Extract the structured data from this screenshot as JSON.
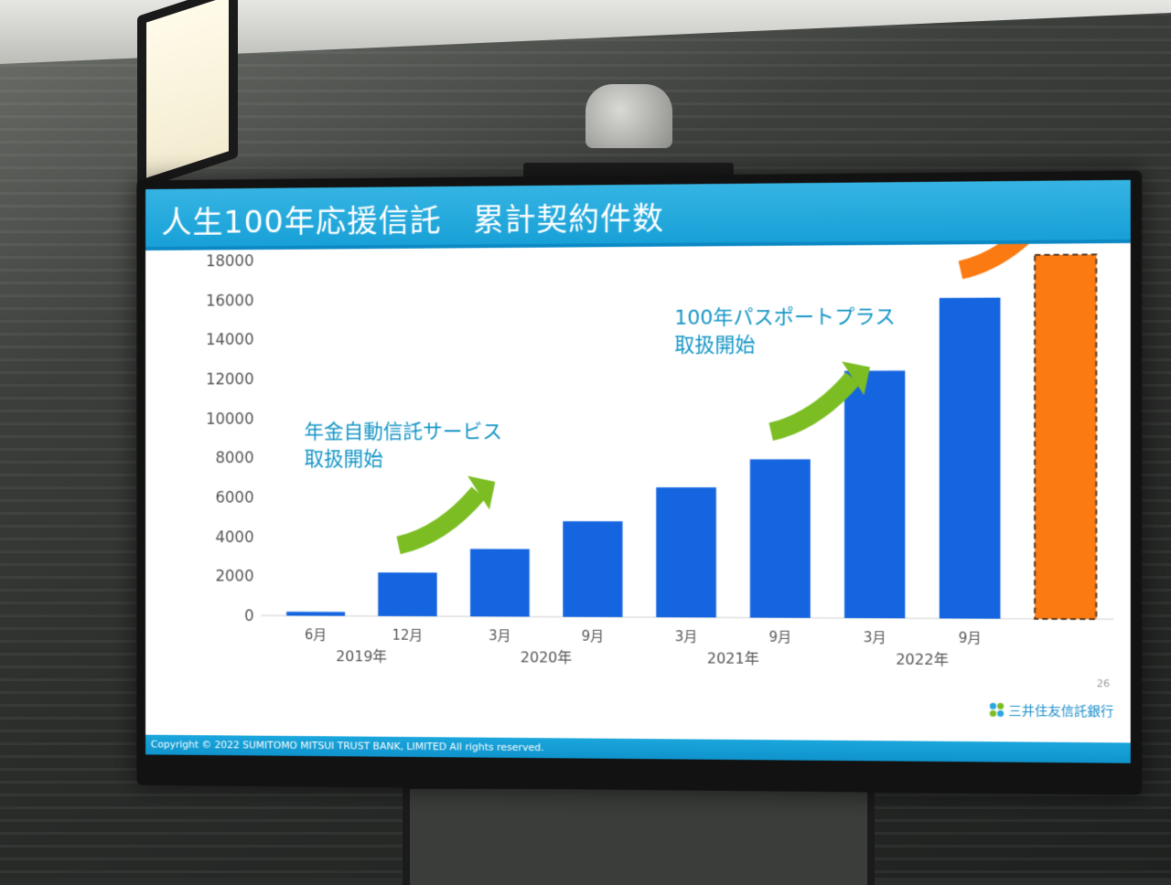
{
  "slide": {
    "title": "人生100年応援信託　累計契約件数",
    "page_number": "26",
    "copyright": "Copyright © 2022 SUMITOMO MITSUI TRUST BANK, LIMITED All rights reserved.",
    "brand": "三井住友信託銀行"
  },
  "chart_data": {
    "type": "bar",
    "title": "人生100年応援信託　累計契約件数",
    "xlabel": "",
    "ylabel": "",
    "ylim": [
      0,
      18000
    ],
    "yticks": [
      0,
      2000,
      4000,
      6000,
      8000,
      10000,
      12000,
      14000,
      16000,
      18000
    ],
    "categories": [
      "6月",
      "12月",
      "3月",
      "9月",
      "3月",
      "9月",
      "3月",
      "9月",
      ""
    ],
    "year_groups": [
      {
        "label": "2019年",
        "categories": [
          0,
          1
        ]
      },
      {
        "label": "2020年",
        "categories": [
          2,
          3
        ]
      },
      {
        "label": "2021年",
        "categories": [
          4,
          5
        ]
      },
      {
        "label": "2022年",
        "categories": [
          6,
          7
        ]
      }
    ],
    "values": [
      200,
      2200,
      3400,
      4800,
      6500,
      7900,
      12300,
      15900,
      18000
    ],
    "colors": [
      "#1565e0",
      "#1565e0",
      "#1565e0",
      "#1565e0",
      "#1565e0",
      "#1565e0",
      "#1565e0",
      "#1565e0",
      "#fb7a12"
    ],
    "last_bar_style": "dashed-outline",
    "grid": false,
    "annotations": [
      {
        "lines": [
          "年金自動信託サービス",
          "取扱開始"
        ],
        "after_category": 1,
        "arrow_color": "#7bbd23"
      },
      {
        "lines": [
          "100年パスポートプラス",
          "取扱開始"
        ],
        "after_category": 5,
        "arrow_color": "#7bbd23"
      },
      {
        "lines": [],
        "after_category": 7,
        "arrow_color": "#fb7a12"
      }
    ]
  }
}
